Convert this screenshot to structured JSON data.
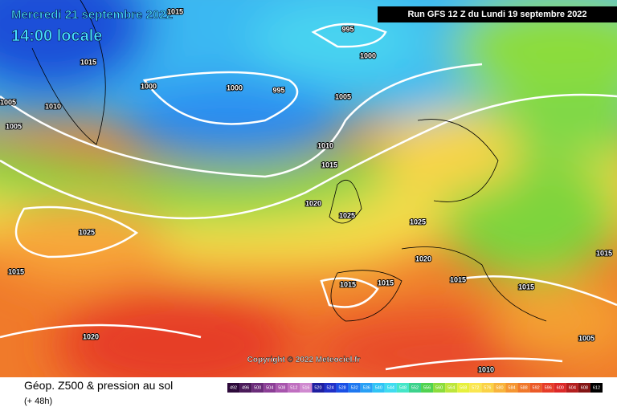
{
  "header": {
    "date": "Mercredi 21 septembre 2022",
    "time": "14:00 locale",
    "run": "Run GFS 12 Z du Lundi 19 septembre 2022"
  },
  "copyright": "Copyright © 2022 Meteociel.fr",
  "footer": {
    "title": "Géop. Z500 & pression au sol",
    "subtitle": "(+ 48h)"
  },
  "isobar_labels": [
    "1015",
    "995",
    "1000",
    "1015",
    "1000",
    "1000",
    "995",
    "1005",
    "1005",
    "1010",
    "1005",
    "1010",
    "1015",
    "1020",
    "1025",
    "1025",
    "1025",
    "1015",
    "1020",
    "1015",
    "1015",
    "1015",
    "1015",
    "1015",
    "1020",
    "1005",
    "1010"
  ],
  "legend": {
    "values": [
      492,
      496,
      500,
      504,
      508,
      512,
      516,
      520,
      524,
      528,
      532,
      536,
      540,
      544,
      548,
      552,
      556,
      560,
      564,
      568,
      572,
      576,
      580,
      584,
      588,
      592,
      596,
      600,
      604,
      608,
      612
    ],
    "colors": [
      "#2d0a3a",
      "#4b1b5a",
      "#6b2c7a",
      "#8c3e96",
      "#a855ad",
      "#c06fc0",
      "#d08ad0",
      "#1e1ea0",
      "#2030c8",
      "#1a50e6",
      "#1e78f0",
      "#28a0f5",
      "#30c4f5",
      "#40dcf0",
      "#44e6c8",
      "#3cd28c",
      "#50d250",
      "#8cdc3c",
      "#bde63c",
      "#e6f03c",
      "#fae650",
      "#fad246",
      "#f8b43c",
      "#f59632",
      "#f0782a",
      "#eb5a28",
      "#e63c28",
      "#dc2828",
      "#b41e1e",
      "#821414",
      "#000000"
    ]
  }
}
